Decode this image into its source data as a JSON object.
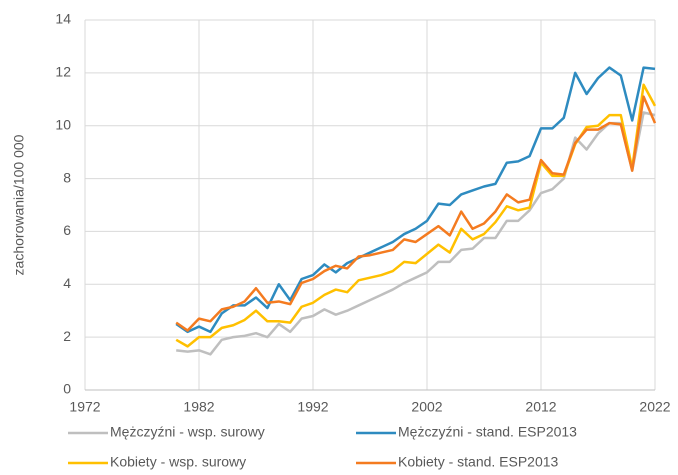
{
  "chart_data": {
    "type": "line",
    "y_label": "zachorowania/100 000",
    "x": [
      1980,
      1981,
      1982,
      1983,
      1984,
      1985,
      1986,
      1987,
      1988,
      1989,
      1990,
      1991,
      1992,
      1993,
      1994,
      1995,
      1996,
      1997,
      1998,
      1999,
      2000,
      2001,
      2002,
      2003,
      2004,
      2005,
      2006,
      2007,
      2008,
      2009,
      2010,
      2011,
      2012,
      2013,
      2014,
      2015,
      2016,
      2017,
      2018,
      2019,
      2020,
      2021,
      2022
    ],
    "series": [
      {
        "name": "Mężczyźni - wsp. surowy",
        "color": "#bfbfbf",
        "values": [
          1.5,
          1.45,
          1.5,
          1.35,
          1.9,
          2.0,
          2.05,
          2.15,
          2.0,
          2.5,
          2.2,
          2.7,
          2.8,
          3.05,
          2.85,
          3.0,
          3.2,
          3.4,
          3.6,
          3.8,
          4.05,
          4.25,
          4.45,
          4.85,
          4.85,
          5.3,
          5.35,
          5.75,
          5.75,
          6.4,
          6.4,
          6.8,
          7.45,
          7.6,
          8.0,
          9.55,
          9.1,
          9.7,
          10.1,
          10.1,
          8.3,
          10.5,
          10.4
        ]
      },
      {
        "name": "Mężczyźni - stand. ESP2013",
        "color": "#2e8bc0",
        "values": [
          2.5,
          2.2,
          2.4,
          2.2,
          2.9,
          3.2,
          3.2,
          3.5,
          3.1,
          4.0,
          3.4,
          4.2,
          4.35,
          4.75,
          4.45,
          4.8,
          5.0,
          5.2,
          5.4,
          5.6,
          5.9,
          6.1,
          6.4,
          7.05,
          7.0,
          7.4,
          7.55,
          7.7,
          7.8,
          8.6,
          8.65,
          8.85,
          9.9,
          9.9,
          10.3,
          12.0,
          11.2,
          11.8,
          12.2,
          11.9,
          10.2,
          12.2,
          12.15
        ]
      },
      {
        "name": "Kobiety - wsp. surowy",
        "color": "#ffc000",
        "values": [
          1.9,
          1.65,
          2.0,
          2.0,
          2.35,
          2.45,
          2.65,
          3.0,
          2.6,
          2.6,
          2.55,
          3.15,
          3.3,
          3.6,
          3.8,
          3.7,
          4.15,
          4.25,
          4.35,
          4.5,
          4.85,
          4.8,
          5.15,
          5.5,
          5.2,
          6.1,
          5.7,
          5.9,
          6.35,
          6.95,
          6.8,
          6.9,
          8.6,
          8.1,
          8.1,
          9.3,
          9.95,
          10.0,
          10.4,
          10.4,
          8.4,
          11.55,
          10.75
        ]
      },
      {
        "name": "Kobiety - stand. ESP2013",
        "color": "#f47b20",
        "values": [
          2.55,
          2.25,
          2.7,
          2.6,
          3.05,
          3.15,
          3.35,
          3.85,
          3.3,
          3.35,
          3.25,
          4.05,
          4.2,
          4.5,
          4.7,
          4.6,
          5.05,
          5.1,
          5.2,
          5.3,
          5.7,
          5.6,
          5.9,
          6.2,
          5.85,
          6.75,
          6.1,
          6.3,
          6.75,
          7.4,
          7.1,
          7.2,
          8.7,
          8.2,
          8.15,
          9.35,
          9.85,
          9.85,
          10.1,
          10.05,
          8.3,
          11.1,
          10.1
        ]
      }
    ],
    "xlim": [
      1972,
      2022
    ],
    "xticks": [
      1972,
      1982,
      1992,
      2002,
      2012,
      2022
    ],
    "ylim": [
      0,
      14
    ],
    "yticks": [
      0,
      2,
      4,
      6,
      8,
      10,
      12,
      14
    ],
    "grid": true,
    "legend": "bottom"
  }
}
